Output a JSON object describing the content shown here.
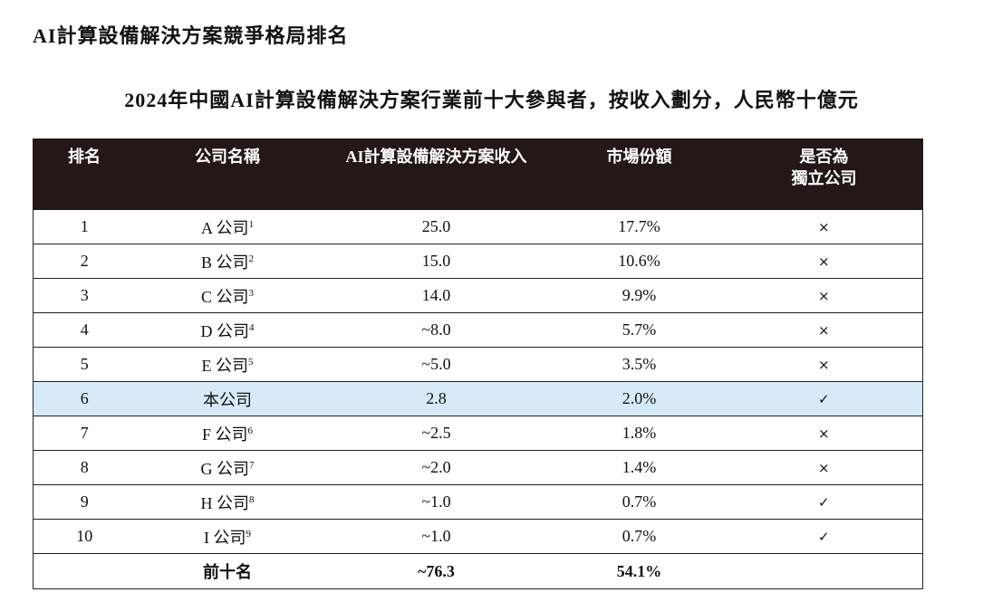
{
  "heading": "AI計算設備解決方案競爭格局排名",
  "subtitle": "2024年中國AI計算設備解決方案行業前十大參與者，按收入劃分，人民幣十億元",
  "table": {
    "headers": {
      "rank": "排名",
      "company": "公司名稱",
      "revenue": "AI計算設備解決方案收入",
      "share": "市場份額",
      "independent_line1": "是否為",
      "independent_line2": "獨立公司"
    },
    "rows": [
      {
        "rank": "1",
        "company": "A 公司",
        "note": "1",
        "revenue": "25.0",
        "share": "17.7%",
        "independent": "×"
      },
      {
        "rank": "2",
        "company": "B 公司",
        "note": "2",
        "revenue": "15.0",
        "share": "10.6%",
        "independent": "×"
      },
      {
        "rank": "3",
        "company": "C 公司",
        "note": "3",
        "revenue": "14.0",
        "share": "9.9%",
        "independent": "×"
      },
      {
        "rank": "4",
        "company": "D 公司",
        "note": "4",
        "revenue": "~8.0",
        "share": "5.7%",
        "independent": "×"
      },
      {
        "rank": "5",
        "company": "E 公司",
        "note": "5",
        "revenue": "~5.0",
        "share": "3.5%",
        "independent": "×"
      },
      {
        "rank": "6",
        "company": "本公司",
        "note": "",
        "revenue": "2.8",
        "share": "2.0%",
        "independent": "✓"
      },
      {
        "rank": "7",
        "company": "F 公司",
        "note": "6",
        "revenue": "~2.5",
        "share": "1.8%",
        "independent": "×"
      },
      {
        "rank": "8",
        "company": "G 公司",
        "note": "7",
        "revenue": "~2.0",
        "share": "1.4%",
        "independent": "×"
      },
      {
        "rank": "9",
        "company": "H 公司",
        "note": "8",
        "revenue": "~1.0",
        "share": "0.7%",
        "independent": "✓"
      },
      {
        "rank": "10",
        "company": "I 公司",
        "note": "9",
        "revenue": "~1.0",
        "share": "0.7%",
        "independent": "✓"
      }
    ],
    "total": {
      "label": "前十名",
      "revenue": "~76.3",
      "share": "54.1%"
    }
  },
  "colors": {
    "header_bg": "#231815",
    "highlight_row": "#d6ebf7"
  }
}
